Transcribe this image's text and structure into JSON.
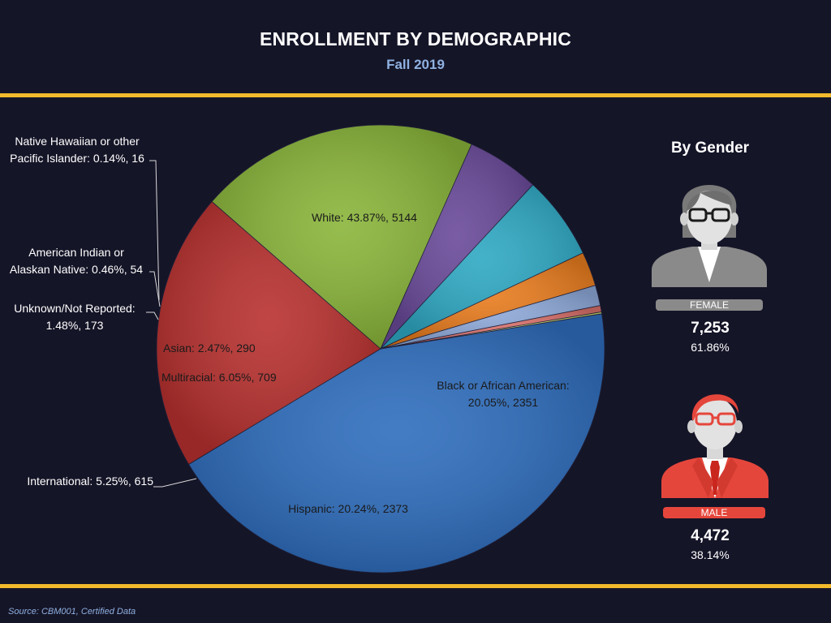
{
  "header": {
    "title": "ENROLLMENT BY DEMOGRAPHIC",
    "subtitle": "Fall 2019"
  },
  "chart_data": {
    "type": "pie",
    "title": "ENROLLMENT BY DEMOGRAPHIC",
    "subtitle": "Fall 2019",
    "slices": [
      {
        "label": "White: 43.87%, 5144",
        "name": "White",
        "percent": 43.87,
        "value": 5144,
        "color": "#2f6ebe"
      },
      {
        "label": "Black or African American:\n20.05%, 2351",
        "name": "Black or African American",
        "percent": 20.05,
        "value": 2351,
        "color": "#b8312f"
      },
      {
        "label": "Hispanic: 20.24%, 2373",
        "name": "Hispanic",
        "percent": 20.24,
        "value": 2373,
        "color": "#8ab53a"
      },
      {
        "label": "International: 5.25%, 615",
        "name": "International",
        "percent": 5.25,
        "value": 615,
        "color": "#6a4a9a"
      },
      {
        "label": "Multiracial: 6.05%, 709",
        "name": "Multiracial",
        "percent": 6.05,
        "value": 709,
        "color": "#2fa9c4"
      },
      {
        "label": "Asian: 2.47%, 290",
        "name": "Asian",
        "percent": 2.47,
        "value": 290,
        "color": "#e87c1e"
      },
      {
        "label": "Unknown/Not Reported:\n1.48%, 173",
        "name": "Unknown/Not Reported",
        "percent": 1.48,
        "value": 173,
        "color": "#8da8d8"
      },
      {
        "label": "American Indian or\nAlaskan Native: 0.46%, 54",
        "name": "American Indian or Alaskan Native",
        "percent": 0.46,
        "value": 54,
        "color": "#d9706a"
      },
      {
        "label": "Native Hawaiian or other\nPacific Islander: 0.14%, 16",
        "name": "Native Hawaiian or other Pacific Islander",
        "percent": 0.14,
        "value": 16,
        "color": "#c8d66a"
      }
    ]
  },
  "gender": {
    "title": "By Gender",
    "female": {
      "label": "FEMALE",
      "count": "7,253",
      "percent": "61.86%",
      "color": "#8a8a8a"
    },
    "male": {
      "label": "MALE",
      "count": "4,472",
      "percent": "38.14%",
      "color": "#e5463b"
    }
  },
  "source": "Source: CBM001, Certified Data"
}
